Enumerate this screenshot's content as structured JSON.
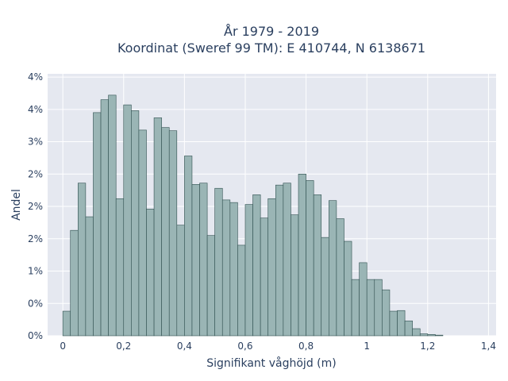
{
  "chart_data": {
    "type": "bar",
    "title_lines": [
      "År 1979 - 2019",
      "Koordinat (Sweref 99 TM): E 410744, N 6138671"
    ],
    "xlabel": "Signifikant våghöjd (m)",
    "ylabel": "Andel",
    "bin_width": 0.025,
    "x_start": 0.0,
    "xlim": [
      -0.05,
      1.425
    ],
    "ylim": [
      0,
      0.0405
    ],
    "x_ticks": [
      0,
      0.2,
      0.4,
      0.6,
      0.8,
      1.0,
      1.2,
      1.4
    ],
    "x_tick_labels": [
      "0",
      "0,2",
      "0,4",
      "0,6",
      "0,8",
      "1",
      "1,2",
      "1,4"
    ],
    "y_ticks": [
      0,
      0.005,
      0.01,
      0.015,
      0.02,
      0.025,
      0.03,
      0.035,
      0.04
    ],
    "y_tick_labels": [
      "0%",
      "0%",
      "1%",
      "2%",
      "2%",
      "2%",
      "3%",
      "4%",
      "4%"
    ],
    "values": [
      0.0038,
      0.0163,
      0.0236,
      0.0184,
      0.0345,
      0.0365,
      0.0372,
      0.0212,
      0.0357,
      0.0348,
      0.0318,
      0.0196,
      0.0337,
      0.0322,
      0.0317,
      0.0171,
      0.0278,
      0.0234,
      0.0236,
      0.0155,
      0.0228,
      0.021,
      0.0206,
      0.014,
      0.0203,
      0.0218,
      0.0182,
      0.0212,
      0.0233,
      0.0236,
      0.0187,
      0.025,
      0.024,
      0.0218,
      0.0152,
      0.0209,
      0.0181,
      0.0146,
      0.0087,
      0.0113,
      0.0087,
      0.0087,
      0.0071,
      0.0038,
      0.0039,
      0.0023,
      0.0011,
      0.0003,
      0.0002,
      0.0001
    ],
    "colors": {
      "bar_fill": "#9ab5b5",
      "bar_stroke": "#2f4f4f",
      "plot_bg": "#e5e8f0",
      "grid": "#ffffff",
      "text": "#2a3f5f"
    },
    "grid": true
  }
}
